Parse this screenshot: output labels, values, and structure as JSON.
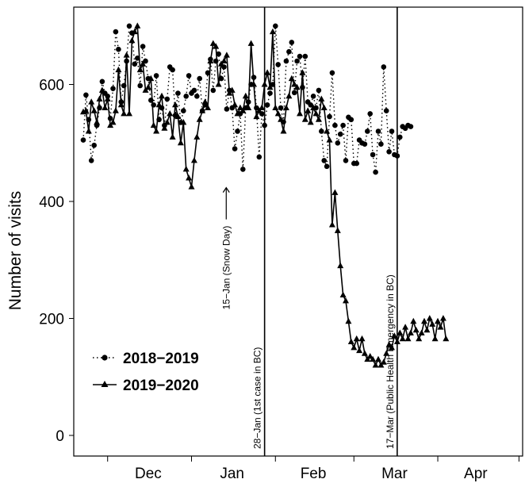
{
  "chart_data": {
    "type": "line",
    "title": "",
    "xlabel": "",
    "ylabel": "Number of visits",
    "ylim": [
      0,
      720
    ],
    "yticks": [
      0,
      200,
      400,
      600
    ],
    "x_unit": "date",
    "x_start": "2019-11-22",
    "x_end": "2020-04-30",
    "month_ticks": [
      "2019-12-01",
      "2020-01-01",
      "2020-02-01",
      "2020-03-01",
      "2020-04-01",
      "2020-05-01"
    ],
    "month_labels": [
      {
        "label": "Dec",
        "date": "2019-12-16"
      },
      {
        "label": "Jan",
        "date": "2020-01-16"
      },
      {
        "label": "Feb",
        "date": "2020-02-15"
      },
      {
        "label": "Mar",
        "date": "2020-03-16"
      },
      {
        "label": "Apr",
        "date": "2020-04-15"
      }
    ],
    "grid": false,
    "legend_position": "bottom-left",
    "vlines": [
      {
        "date": "2020-01-28",
        "label": "28−Jan (1st case in BC)"
      },
      {
        "date": "2020-03-17",
        "label": "17−Mar (Public Health Emergency in BC)"
      }
    ],
    "annotations": [
      {
        "date": "2020-01-15",
        "value": 410,
        "label": "15−Jan (Snow Day)",
        "arrow": true
      }
    ],
    "series": [
      {
        "name": "2018–2019",
        "style": "dotted",
        "marker": "circle",
        "x_start": "2019-11-22",
        "values": [
          505,
          582,
          540,
          470,
          496,
          530,
          560,
          605,
          585,
          580,
          542,
          593,
          690,
          660,
          570,
          598,
          640,
          700,
          688,
          635,
          645,
          598,
          665,
          640,
          610,
          573,
          565,
          615,
          540,
          560,
          530,
          575,
          630,
          625,
          547,
          585,
          535,
          555,
          580,
          615,
          585,
          590,
          580,
          610,
          555,
          565,
          620,
          643,
          590,
          640,
          652,
          610,
          630,
          558,
          590,
          560,
          490,
          520,
          550,
          455,
          560,
          570,
          600,
          612,
          560,
          476,
          550,
          530,
          565,
          585,
          600,
          700,
          634,
          560,
          536,
          640,
          656,
          672,
          586,
          640,
          648,
          595,
          648,
          570,
          565,
          580,
          560,
          590,
          520,
          470,
          460,
          545,
          620,
          530,
          500,
          515,
          530,
          470,
          544,
          540,
          465,
          465,
          505,
          500,
          498,
          520,
          550,
          480,
          450,
          520,
          498,
          630,
          555,
          485,
          520,
          480,
          478,
          510,
          528,
          525,
          530,
          528
        ],
        "color": "#000000"
      },
      {
        "name": "2019–2020",
        "style": "solid",
        "marker": "triangle",
        "x_start": "2019-11-22",
        "values": [
          553,
          555,
          520,
          570,
          555,
          535,
          575,
          590,
          560,
          575,
          530,
          535,
          555,
          625,
          565,
          550,
          650,
          550,
          675,
          690,
          700,
          625,
          635,
          590,
          595,
          610,
          530,
          520,
          565,
          580,
          525,
          535,
          550,
          510,
          565,
          545,
          500,
          535,
          455,
          440,
          425,
          470,
          510,
          540,
          555,
          570,
          560,
          640,
          670,
          665,
          600,
          635,
          640,
          650,
          585,
          590,
          565,
          550,
          560,
          555,
          580,
          560,
          670,
          600,
          545,
          555,
          560,
          600,
          620,
          595,
          690,
          560,
          550,
          540,
          520,
          560,
          580,
          610,
          600,
          595,
          550,
          620,
          540,
          555,
          535,
          560,
          550,
          540,
          575,
          560,
          520,
          505,
          360,
          415,
          350,
          290,
          240,
          230,
          195,
          160,
          150,
          165,
          145,
          165,
          140,
          130,
          135,
          130,
          120,
          130,
          120,
          125,
          140,
          155,
          150,
          170,
          160,
          175,
          165,
          185,
          165,
          175,
          195,
          180,
          165,
          175,
          195,
          180,
          200,
          190,
          165,
          195,
          185,
          200,
          165
        ]
      }
    ]
  },
  "legend": {
    "items": [
      {
        "label": "2018−2019"
      },
      {
        "label": "2019−2020"
      }
    ]
  }
}
